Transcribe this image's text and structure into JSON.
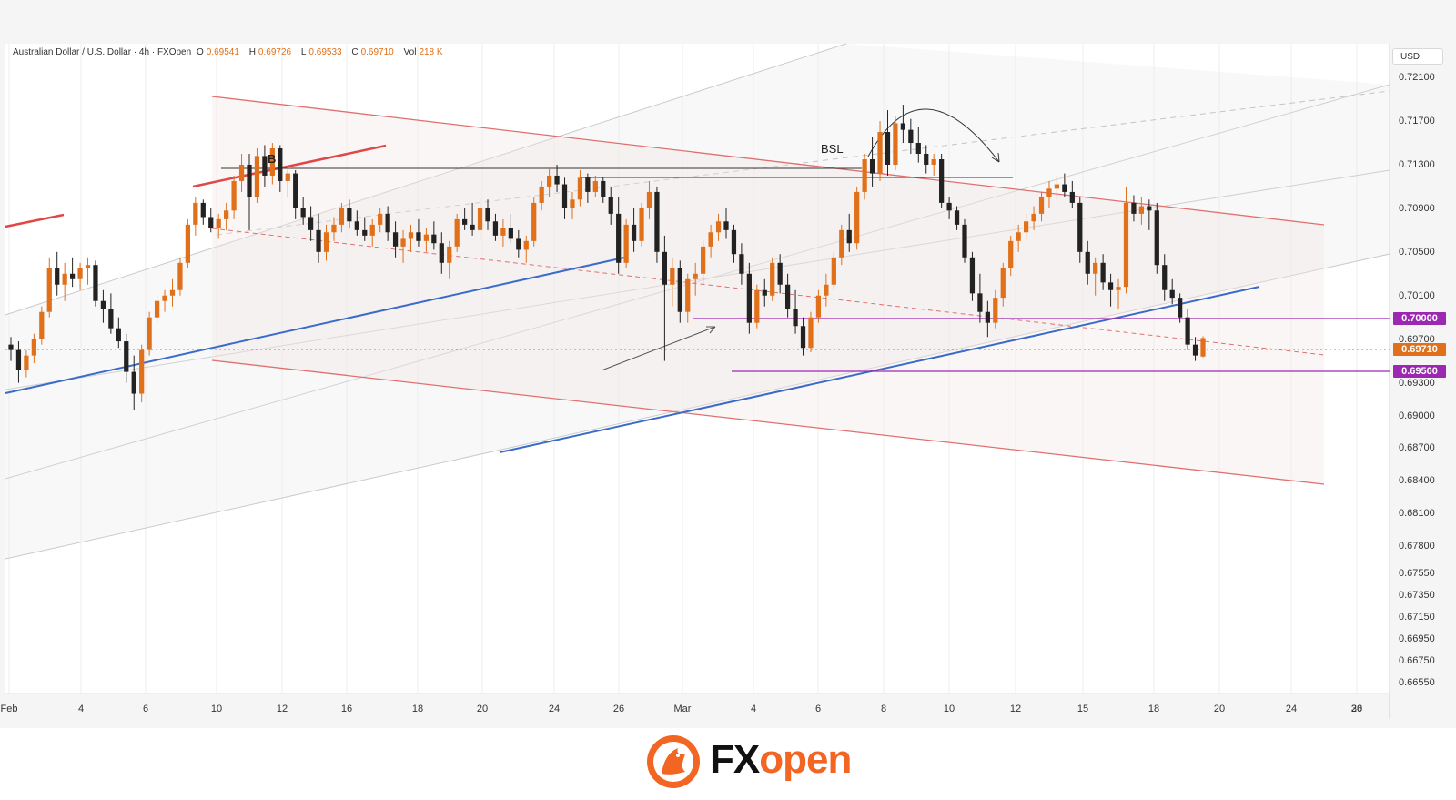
{
  "header": {
    "symbol": "Australian Dollar / U.S. Dollar · 4h · FXOpen",
    "open_label": "O",
    "open": "0.69541",
    "high_label": "H",
    "high": "0.69726",
    "low_label": "L",
    "low": "0.69533",
    "close_label": "C",
    "close": "0.69710",
    "vol_label": "Vol",
    "vol": "218 K"
  },
  "currency": "USD",
  "annotations": {
    "b_label": "B",
    "bsl_label": "BSL"
  },
  "price_tags": [
    {
      "text": "0.70000",
      "color": "#9c27b0"
    },
    {
      "text": "0.69710",
      "color": "#e0701a"
    },
    {
      "text": "0.69500",
      "color": "#9c27b0"
    }
  ],
  "brand": {
    "fx": "FX",
    "open": "open",
    "accent": "#f26522"
  },
  "colors": {
    "up": "#e0701a",
    "down": "#222222",
    "support": "#3a6bc9",
    "channel": "#e06060",
    "level": "#9c27b0"
  },
  "chart_data": {
    "type": "candlestick",
    "title": "Australian Dollar / U.S. Dollar · 4h · FXOpen",
    "ylabel": "USD",
    "ylim": [
      0.6645,
      0.7241
    ],
    "x_ticks": [
      "Feb",
      "4",
      "6",
      "10",
      "12",
      "16",
      "18",
      "20",
      "24",
      "26",
      "Mar",
      "4",
      "6",
      "8",
      "10",
      "12",
      "15",
      "18",
      "20",
      "24",
      "26",
      "30"
    ],
    "y_ticks": [
      "0.72100",
      "0.71700",
      "0.71300",
      "0.70900",
      "0.70500",
      "0.70100",
      "0.69700",
      "0.69300",
      "0.69000",
      "0.68700",
      "0.68400",
      "0.68100",
      "0.67800",
      "0.67550",
      "0.67350",
      "0.67150",
      "0.66950",
      "0.66750",
      "0.66550"
    ],
    "candles": [
      {
        "o": 0.6965,
        "h": 0.6972,
        "l": 0.695,
        "c": 0.696
      },
      {
        "o": 0.696,
        "h": 0.6968,
        "l": 0.693,
        "c": 0.6942
      },
      {
        "o": 0.6942,
        "h": 0.696,
        "l": 0.6935,
        "c": 0.6955
      },
      {
        "o": 0.6955,
        "h": 0.6975,
        "l": 0.6948,
        "c": 0.697
      },
      {
        "o": 0.697,
        "h": 0.7,
        "l": 0.6965,
        "c": 0.6995
      },
      {
        "o": 0.6995,
        "h": 0.7045,
        "l": 0.699,
        "c": 0.7035
      },
      {
        "o": 0.7035,
        "h": 0.705,
        "l": 0.701,
        "c": 0.702
      },
      {
        "o": 0.702,
        "h": 0.704,
        "l": 0.7005,
        "c": 0.703
      },
      {
        "o": 0.703,
        "h": 0.7045,
        "l": 0.7018,
        "c": 0.7025
      },
      {
        "o": 0.7025,
        "h": 0.704,
        "l": 0.7015,
        "c": 0.7035
      },
      {
        "o": 0.7035,
        "h": 0.7045,
        "l": 0.702,
        "c": 0.7038
      },
      {
        "o": 0.7038,
        "h": 0.7042,
        "l": 0.7,
        "c": 0.7005
      },
      {
        "o": 0.7005,
        "h": 0.7015,
        "l": 0.6985,
        "c": 0.6998
      },
      {
        "o": 0.6998,
        "h": 0.7012,
        "l": 0.6975,
        "c": 0.698
      },
      {
        "o": 0.698,
        "h": 0.699,
        "l": 0.6962,
        "c": 0.6968
      },
      {
        "o": 0.6968,
        "h": 0.6975,
        "l": 0.693,
        "c": 0.694
      },
      {
        "o": 0.694,
        "h": 0.6955,
        "l": 0.6905,
        "c": 0.692
      },
      {
        "o": 0.692,
        "h": 0.6965,
        "l": 0.6912,
        "c": 0.696
      },
      {
        "o": 0.696,
        "h": 0.6995,
        "l": 0.6955,
        "c": 0.699
      },
      {
        "o": 0.699,
        "h": 0.701,
        "l": 0.6985,
        "c": 0.7005
      },
      {
        "o": 0.7005,
        "h": 0.7015,
        "l": 0.6995,
        "c": 0.701
      },
      {
        "o": 0.701,
        "h": 0.7025,
        "l": 0.7,
        "c": 0.7015
      },
      {
        "o": 0.7015,
        "h": 0.7045,
        "l": 0.701,
        "c": 0.704
      },
      {
        "o": 0.704,
        "h": 0.708,
        "l": 0.7035,
        "c": 0.7075
      },
      {
        "o": 0.7075,
        "h": 0.71,
        "l": 0.7065,
        "c": 0.7095
      },
      {
        "o": 0.7095,
        "h": 0.7098,
        "l": 0.7075,
        "c": 0.7082
      },
      {
        "o": 0.7082,
        "h": 0.709,
        "l": 0.7068,
        "c": 0.7072
      },
      {
        "o": 0.7072,
        "h": 0.7085,
        "l": 0.7062,
        "c": 0.708
      },
      {
        "o": 0.708,
        "h": 0.7095,
        "l": 0.707,
        "c": 0.7088
      },
      {
        "o": 0.7088,
        "h": 0.712,
        "l": 0.708,
        "c": 0.7115
      },
      {
        "o": 0.7115,
        "h": 0.714,
        "l": 0.7105,
        "c": 0.713
      },
      {
        "o": 0.713,
        "h": 0.714,
        "l": 0.707,
        "c": 0.71
      },
      {
        "o": 0.71,
        "h": 0.7145,
        "l": 0.7095,
        "c": 0.7138
      },
      {
        "o": 0.7138,
        "h": 0.7148,
        "l": 0.711,
        "c": 0.712
      },
      {
        "o": 0.712,
        "h": 0.715,
        "l": 0.7112,
        "c": 0.7145
      },
      {
        "o": 0.7145,
        "h": 0.7148,
        "l": 0.7105,
        "c": 0.7115
      },
      {
        "o": 0.7115,
        "h": 0.7128,
        "l": 0.71,
        "c": 0.7122
      },
      {
        "o": 0.7122,
        "h": 0.7125,
        "l": 0.708,
        "c": 0.709
      },
      {
        "o": 0.709,
        "h": 0.71,
        "l": 0.7075,
        "c": 0.7082
      },
      {
        "o": 0.7082,
        "h": 0.7092,
        "l": 0.706,
        "c": 0.707
      },
      {
        "o": 0.707,
        "h": 0.7085,
        "l": 0.704,
        "c": 0.705
      },
      {
        "o": 0.705,
        "h": 0.7075,
        "l": 0.7042,
        "c": 0.7068
      },
      {
        "o": 0.7068,
        "h": 0.7082,
        "l": 0.706,
        "c": 0.7075
      },
      {
        "o": 0.7075,
        "h": 0.7095,
        "l": 0.7068,
        "c": 0.709
      },
      {
        "o": 0.709,
        "h": 0.7098,
        "l": 0.7072,
        "c": 0.7078
      },
      {
        "o": 0.7078,
        "h": 0.7088,
        "l": 0.7065,
        "c": 0.707
      },
      {
        "o": 0.707,
        "h": 0.7082,
        "l": 0.706,
        "c": 0.7065
      },
      {
        "o": 0.7065,
        "h": 0.708,
        "l": 0.7055,
        "c": 0.7075
      },
      {
        "o": 0.7075,
        "h": 0.709,
        "l": 0.7068,
        "c": 0.7085
      },
      {
        "o": 0.7085,
        "h": 0.7092,
        "l": 0.706,
        "c": 0.7068
      },
      {
        "o": 0.7068,
        "h": 0.7078,
        "l": 0.7045,
        "c": 0.7055
      },
      {
        "o": 0.7055,
        "h": 0.707,
        "l": 0.704,
        "c": 0.7062
      },
      {
        "o": 0.7062,
        "h": 0.7075,
        "l": 0.705,
        "c": 0.7068
      },
      {
        "o": 0.7068,
        "h": 0.708,
        "l": 0.7055,
        "c": 0.706
      },
      {
        "o": 0.706,
        "h": 0.7072,
        "l": 0.705,
        "c": 0.7066
      },
      {
        "o": 0.7066,
        "h": 0.7078,
        "l": 0.7052,
        "c": 0.7058
      },
      {
        "o": 0.7058,
        "h": 0.7068,
        "l": 0.703,
        "c": 0.704
      },
      {
        "o": 0.704,
        "h": 0.706,
        "l": 0.7025,
        "c": 0.7055
      },
      {
        "o": 0.7055,
        "h": 0.7085,
        "l": 0.705,
        "c": 0.708
      },
      {
        "o": 0.708,
        "h": 0.709,
        "l": 0.707,
        "c": 0.7075
      },
      {
        "o": 0.7075,
        "h": 0.7095,
        "l": 0.7065,
        "c": 0.707
      },
      {
        "o": 0.707,
        "h": 0.71,
        "l": 0.706,
        "c": 0.709
      },
      {
        "o": 0.709,
        "h": 0.7098,
        "l": 0.707,
        "c": 0.7078
      },
      {
        "o": 0.7078,
        "h": 0.7085,
        "l": 0.706,
        "c": 0.7065
      },
      {
        "o": 0.7065,
        "h": 0.708,
        "l": 0.7055,
        "c": 0.7072
      },
      {
        "o": 0.7072,
        "h": 0.7085,
        "l": 0.7058,
        "c": 0.7062
      },
      {
        "o": 0.7062,
        "h": 0.707,
        "l": 0.7045,
        "c": 0.7052
      },
      {
        "o": 0.7052,
        "h": 0.7065,
        "l": 0.704,
        "c": 0.706
      },
      {
        "o": 0.706,
        "h": 0.71,
        "l": 0.7055,
        "c": 0.7095
      },
      {
        "o": 0.7095,
        "h": 0.7115,
        "l": 0.7088,
        "c": 0.711
      },
      {
        "o": 0.711,
        "h": 0.7128,
        "l": 0.71,
        "c": 0.712
      },
      {
        "o": 0.712,
        "h": 0.713,
        "l": 0.7105,
        "c": 0.7112
      },
      {
        "o": 0.7112,
        "h": 0.7118,
        "l": 0.708,
        "c": 0.709
      },
      {
        "o": 0.709,
        "h": 0.7105,
        "l": 0.708,
        "c": 0.7098
      },
      {
        "o": 0.7098,
        "h": 0.7125,
        "l": 0.7092,
        "c": 0.7118
      },
      {
        "o": 0.7118,
        "h": 0.7122,
        "l": 0.7095,
        "c": 0.7105
      },
      {
        "o": 0.7105,
        "h": 0.712,
        "l": 0.71,
        "c": 0.7115
      },
      {
        "o": 0.7115,
        "h": 0.7118,
        "l": 0.7095,
        "c": 0.71
      },
      {
        "o": 0.71,
        "h": 0.711,
        "l": 0.7075,
        "c": 0.7085
      },
      {
        "o": 0.7085,
        "h": 0.71,
        "l": 0.703,
        "c": 0.704
      },
      {
        "o": 0.704,
        "h": 0.708,
        "l": 0.7035,
        "c": 0.7075
      },
      {
        "o": 0.7075,
        "h": 0.709,
        "l": 0.705,
        "c": 0.706
      },
      {
        "o": 0.706,
        "h": 0.7095,
        "l": 0.7055,
        "c": 0.709
      },
      {
        "o": 0.709,
        "h": 0.7115,
        "l": 0.708,
        "c": 0.7105
      },
      {
        "o": 0.7105,
        "h": 0.711,
        "l": 0.704,
        "c": 0.705
      },
      {
        "o": 0.705,
        "h": 0.7065,
        "l": 0.695,
        "c": 0.702
      },
      {
        "o": 0.702,
        "h": 0.7045,
        "l": 0.7,
        "c": 0.7035
      },
      {
        "o": 0.7035,
        "h": 0.7042,
        "l": 0.6985,
        "c": 0.6995
      },
      {
        "o": 0.6995,
        "h": 0.703,
        "l": 0.6985,
        "c": 0.7025
      },
      {
        "o": 0.7025,
        "h": 0.704,
        "l": 0.701,
        "c": 0.703
      },
      {
        "o": 0.703,
        "h": 0.706,
        "l": 0.702,
        "c": 0.7055
      },
      {
        "o": 0.7055,
        "h": 0.7075,
        "l": 0.7045,
        "c": 0.7068
      },
      {
        "o": 0.7068,
        "h": 0.7085,
        "l": 0.706,
        "c": 0.7078
      },
      {
        "o": 0.7078,
        "h": 0.709,
        "l": 0.7062,
        "c": 0.707
      },
      {
        "o": 0.707,
        "h": 0.7075,
        "l": 0.704,
        "c": 0.7048
      },
      {
        "o": 0.7048,
        "h": 0.7058,
        "l": 0.702,
        "c": 0.703
      },
      {
        "o": 0.703,
        "h": 0.704,
        "l": 0.6975,
        "c": 0.6985
      },
      {
        "o": 0.6985,
        "h": 0.702,
        "l": 0.698,
        "c": 0.7015
      },
      {
        "o": 0.7015,
        "h": 0.7025,
        "l": 0.7,
        "c": 0.701
      },
      {
        "o": 0.701,
        "h": 0.7045,
        "l": 0.7005,
        "c": 0.704
      },
      {
        "o": 0.704,
        "h": 0.7048,
        "l": 0.7012,
        "c": 0.702
      },
      {
        "o": 0.702,
        "h": 0.703,
        "l": 0.699,
        "c": 0.6998
      },
      {
        "o": 0.6998,
        "h": 0.7015,
        "l": 0.6975,
        "c": 0.6982
      },
      {
        "o": 0.6982,
        "h": 0.699,
        "l": 0.6955,
        "c": 0.6962
      },
      {
        "o": 0.6962,
        "h": 0.6995,
        "l": 0.6958,
        "c": 0.699
      },
      {
        "o": 0.699,
        "h": 0.7015,
        "l": 0.6985,
        "c": 0.701
      },
      {
        "o": 0.701,
        "h": 0.703,
        "l": 0.7,
        "c": 0.702
      },
      {
        "o": 0.702,
        "h": 0.705,
        "l": 0.7015,
        "c": 0.7045
      },
      {
        "o": 0.7045,
        "h": 0.7075,
        "l": 0.7038,
        "c": 0.707
      },
      {
        "o": 0.707,
        "h": 0.7085,
        "l": 0.705,
        "c": 0.7058
      },
      {
        "o": 0.7058,
        "h": 0.711,
        "l": 0.7052,
        "c": 0.7105
      },
      {
        "o": 0.7105,
        "h": 0.714,
        "l": 0.7098,
        "c": 0.7135
      },
      {
        "o": 0.7135,
        "h": 0.7155,
        "l": 0.711,
        "c": 0.7122
      },
      {
        "o": 0.7122,
        "h": 0.717,
        "l": 0.7115,
        "c": 0.716
      },
      {
        "o": 0.716,
        "h": 0.718,
        "l": 0.712,
        "c": 0.713
      },
      {
        "o": 0.713,
        "h": 0.7175,
        "l": 0.7125,
        "c": 0.7168
      },
      {
        "o": 0.7168,
        "h": 0.7185,
        "l": 0.715,
        "c": 0.7162
      },
      {
        "o": 0.7162,
        "h": 0.7172,
        "l": 0.714,
        "c": 0.715
      },
      {
        "o": 0.715,
        "h": 0.7165,
        "l": 0.7132,
        "c": 0.714
      },
      {
        "o": 0.714,
        "h": 0.7148,
        "l": 0.7122,
        "c": 0.713
      },
      {
        "o": 0.713,
        "h": 0.714,
        "l": 0.712,
        "c": 0.7135
      },
      {
        "o": 0.7135,
        "h": 0.714,
        "l": 0.709,
        "c": 0.7095
      },
      {
        "o": 0.7095,
        "h": 0.71,
        "l": 0.708,
        "c": 0.7088
      },
      {
        "o": 0.7088,
        "h": 0.7092,
        "l": 0.707,
        "c": 0.7075
      },
      {
        "o": 0.7075,
        "h": 0.708,
        "l": 0.704,
        "c": 0.7045
      },
      {
        "o": 0.7045,
        "h": 0.705,
        "l": 0.7005,
        "c": 0.7012
      },
      {
        "o": 0.7012,
        "h": 0.703,
        "l": 0.6985,
        "c": 0.6995
      },
      {
        "o": 0.6995,
        "h": 0.7005,
        "l": 0.6972,
        "c": 0.6985
      },
      {
        "o": 0.6985,
        "h": 0.7015,
        "l": 0.698,
        "c": 0.7008
      },
      {
        "o": 0.7008,
        "h": 0.704,
        "l": 0.7,
        "c": 0.7035
      },
      {
        "o": 0.7035,
        "h": 0.7065,
        "l": 0.7028,
        "c": 0.706
      },
      {
        "o": 0.706,
        "h": 0.7075,
        "l": 0.705,
        "c": 0.7068
      },
      {
        "o": 0.7068,
        "h": 0.7085,
        "l": 0.706,
        "c": 0.7078
      },
      {
        "o": 0.7078,
        "h": 0.7092,
        "l": 0.707,
        "c": 0.7085
      },
      {
        "o": 0.7085,
        "h": 0.7105,
        "l": 0.7078,
        "c": 0.71
      },
      {
        "o": 0.71,
        "h": 0.7115,
        "l": 0.709,
        "c": 0.7108
      },
      {
        "o": 0.7108,
        "h": 0.712,
        "l": 0.7098,
        "c": 0.7112
      },
      {
        "o": 0.7112,
        "h": 0.7122,
        "l": 0.71,
        "c": 0.7105
      },
      {
        "o": 0.7105,
        "h": 0.7115,
        "l": 0.709,
        "c": 0.7095
      },
      {
        "o": 0.7095,
        "h": 0.71,
        "l": 0.704,
        "c": 0.705
      },
      {
        "o": 0.705,
        "h": 0.706,
        "l": 0.702,
        "c": 0.703
      },
      {
        "o": 0.703,
        "h": 0.7045,
        "l": 0.701,
        "c": 0.704
      },
      {
        "o": 0.704,
        "h": 0.7048,
        "l": 0.7015,
        "c": 0.7022
      },
      {
        "o": 0.7022,
        "h": 0.703,
        "l": 0.7,
        "c": 0.7015
      },
      {
        "o": 0.7015,
        "h": 0.7025,
        "l": 0.6998,
        "c": 0.7018
      },
      {
        "o": 0.7018,
        "h": 0.711,
        "l": 0.7012,
        "c": 0.7095
      },
      {
        "o": 0.7095,
        "h": 0.7102,
        "l": 0.7078,
        "c": 0.7085
      },
      {
        "o": 0.7085,
        "h": 0.71,
        "l": 0.7075,
        "c": 0.7092
      },
      {
        "o": 0.7092,
        "h": 0.7098,
        "l": 0.707,
        "c": 0.7088
      },
      {
        "o": 0.7088,
        "h": 0.7095,
        "l": 0.703,
        "c": 0.7038
      },
      {
        "o": 0.7038,
        "h": 0.7048,
        "l": 0.7005,
        "c": 0.7015
      },
      {
        "o": 0.7015,
        "h": 0.7025,
        "l": 0.7002,
        "c": 0.7008
      },
      {
        "o": 0.7008,
        "h": 0.7012,
        "l": 0.6985,
        "c": 0.699
      },
      {
        "o": 0.699,
        "h": 0.6998,
        "l": 0.696,
        "c": 0.6965
      },
      {
        "o": 0.6965,
        "h": 0.6972,
        "l": 0.695,
        "c": 0.6955
      },
      {
        "o": 0.69541,
        "h": 0.69726,
        "l": 0.69533,
        "c": 0.6971
      }
    ]
  }
}
